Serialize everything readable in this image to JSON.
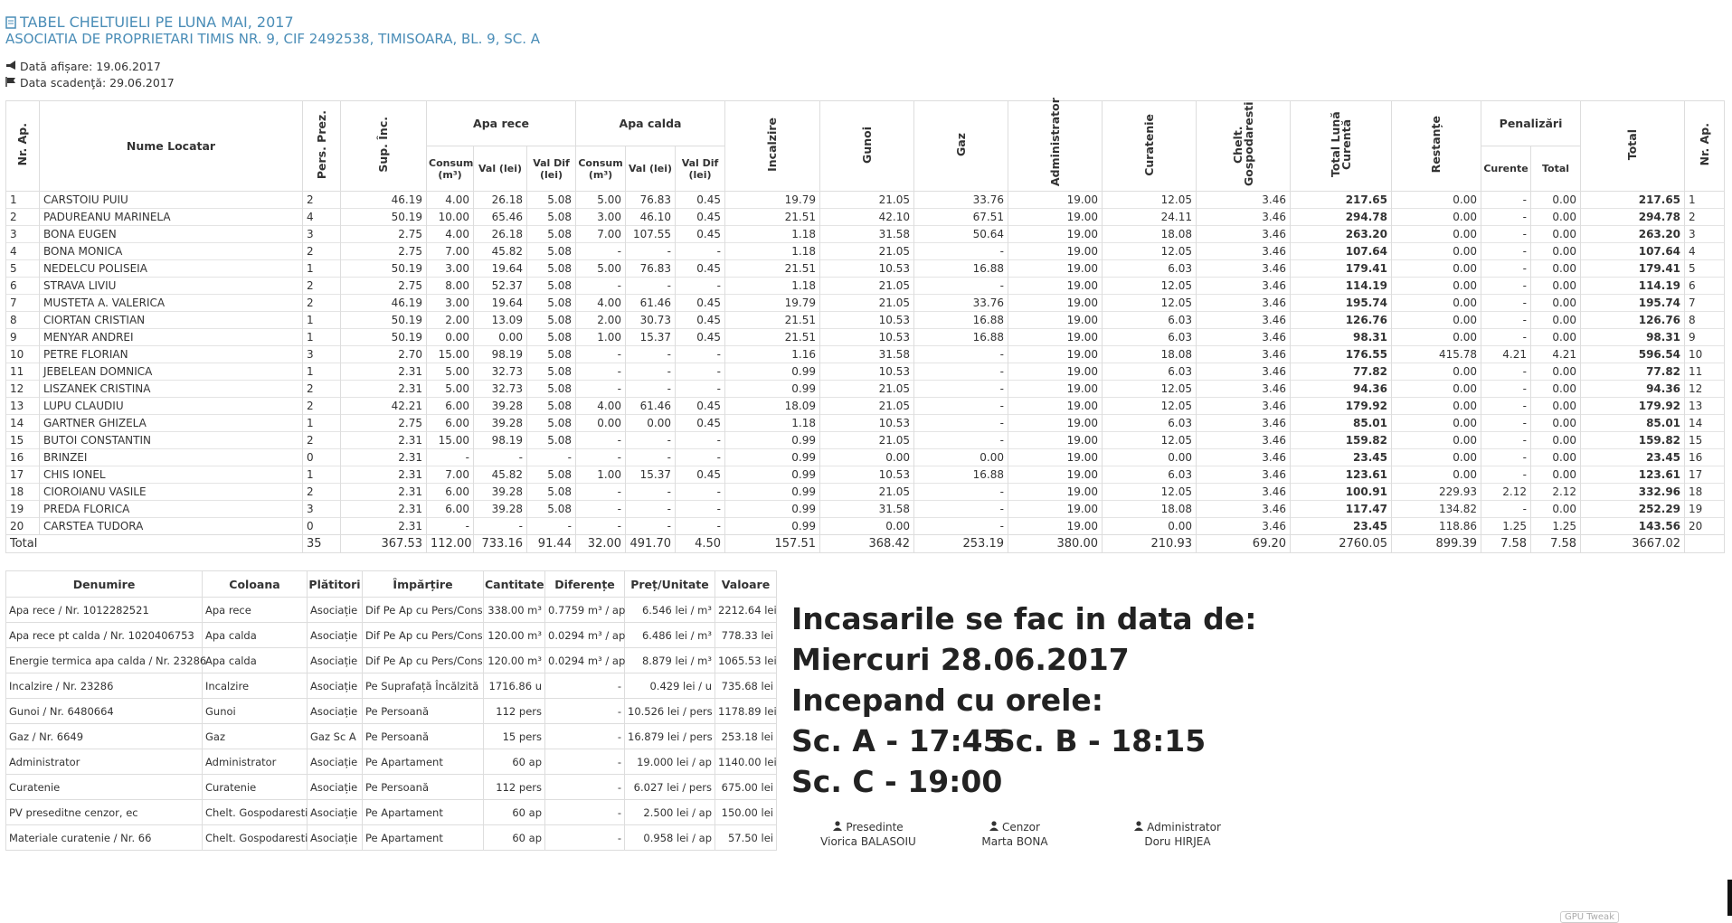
{
  "header": {
    "title": "TABEL CHELTUIELI PE LUNA MAI, 2017",
    "subtitle": "ASOCIATIA DE PROPRIETARI TIMIS NR. 9, CIF 2492538, TIMISOARA, BL. 9, SC. A",
    "display_date": "Dată afișare: 19.06.2017",
    "due_date": "Data scadenţă: 29.06.2017"
  },
  "main_table": {
    "headers": {
      "nr_ap": "Nr. Ap.",
      "name": "Nume Locatar",
      "persons": "Pers. Prez.",
      "surface": "Sup. Înc.",
      "cold_water": {
        "label": "Apa rece",
        "sub": [
          "Consum (m³)",
          "Val (lei)",
          "Val Dif (lei)"
        ]
      },
      "hot_water": {
        "label": "Apa calda",
        "sub": [
          "Consum (m³)",
          "Val (lei)",
          "Val Dif (lei)"
        ]
      },
      "heating": "Incalzire",
      "garbage": "Gunoi",
      "gas": "Gaz",
      "administrator": "Administrator",
      "cleaning": "Curatenie",
      "household": "Chelt. Gospodaresti",
      "month_total": "Total Lună Curentă",
      "arrears": "Restanțe",
      "penalties": {
        "label": "Penalizări",
        "sub": [
          "Curente",
          "Total"
        ]
      },
      "total": "Total",
      "nr_ap_end": "Nr. Ap."
    },
    "rows": [
      [
        "1",
        "CARSTOIU PUIU",
        "2",
        "46.19",
        "4.00",
        "26.18",
        "5.08",
        "5.00",
        "76.83",
        "0.45",
        "19.79",
        "21.05",
        "33.76",
        "19.00",
        "12.05",
        "3.46",
        "217.65",
        "0.00",
        "-",
        "0.00",
        "217.65",
        "1"
      ],
      [
        "2",
        "PADUREANU MARINELA",
        "4",
        "50.19",
        "10.00",
        "65.46",
        "5.08",
        "3.00",
        "46.10",
        "0.45",
        "21.51",
        "42.10",
        "67.51",
        "19.00",
        "24.11",
        "3.46",
        "294.78",
        "0.00",
        "-",
        "0.00",
        "294.78",
        "2"
      ],
      [
        "3",
        "BONA EUGEN",
        "3",
        "2.75",
        "4.00",
        "26.18",
        "5.08",
        "7.00",
        "107.55",
        "0.45",
        "1.18",
        "31.58",
        "50.64",
        "19.00",
        "18.08",
        "3.46",
        "263.20",
        "0.00",
        "-",
        "0.00",
        "263.20",
        "3"
      ],
      [
        "4",
        "BONA MONICA",
        "2",
        "2.75",
        "7.00",
        "45.82",
        "5.08",
        "-",
        "-",
        "-",
        "1.18",
        "21.05",
        "-",
        "19.00",
        "12.05",
        "3.46",
        "107.64",
        "0.00",
        "-",
        "0.00",
        "107.64",
        "4"
      ],
      [
        "5",
        "NEDELCU POLISEIA",
        "1",
        "50.19",
        "3.00",
        "19.64",
        "5.08",
        "5.00",
        "76.83",
        "0.45",
        "21.51",
        "10.53",
        "16.88",
        "19.00",
        "6.03",
        "3.46",
        "179.41",
        "0.00",
        "-",
        "0.00",
        "179.41",
        "5"
      ],
      [
        "6",
        "STRAVA LIVIU",
        "2",
        "2.75",
        "8.00",
        "52.37",
        "5.08",
        "-",
        "-",
        "-",
        "1.18",
        "21.05",
        "-",
        "19.00",
        "12.05",
        "3.46",
        "114.19",
        "0.00",
        "-",
        "0.00",
        "114.19",
        "6"
      ],
      [
        "7",
        "MUSTETA A. VALERICA",
        "2",
        "46.19",
        "3.00",
        "19.64",
        "5.08",
        "4.00",
        "61.46",
        "0.45",
        "19.79",
        "21.05",
        "33.76",
        "19.00",
        "12.05",
        "3.46",
        "195.74",
        "0.00",
        "-",
        "0.00",
        "195.74",
        "7"
      ],
      [
        "8",
        "CIORTAN CRISTIAN",
        "1",
        "50.19",
        "2.00",
        "13.09",
        "5.08",
        "2.00",
        "30.73",
        "0.45",
        "21.51",
        "10.53",
        "16.88",
        "19.00",
        "6.03",
        "3.46",
        "126.76",
        "0.00",
        "-",
        "0.00",
        "126.76",
        "8"
      ],
      [
        "9",
        "MENYAR ANDREI",
        "1",
        "50.19",
        "0.00",
        "0.00",
        "5.08",
        "1.00",
        "15.37",
        "0.45",
        "21.51",
        "10.53",
        "16.88",
        "19.00",
        "6.03",
        "3.46",
        "98.31",
        "0.00",
        "-",
        "0.00",
        "98.31",
        "9"
      ],
      [
        "10",
        "PETRE FLORIAN",
        "3",
        "2.70",
        "15.00",
        "98.19",
        "5.08",
        "-",
        "-",
        "-",
        "1.16",
        "31.58",
        "-",
        "19.00",
        "18.08",
        "3.46",
        "176.55",
        "415.78",
        "4.21",
        "4.21",
        "596.54",
        "10"
      ],
      [
        "11",
        "JEBELEAN DOMNICA",
        "1",
        "2.31",
        "5.00",
        "32.73",
        "5.08",
        "-",
        "-",
        "-",
        "0.99",
        "10.53",
        "-",
        "19.00",
        "6.03",
        "3.46",
        "77.82",
        "0.00",
        "-",
        "0.00",
        "77.82",
        "11"
      ],
      [
        "12",
        "LISZANEK CRISTINA",
        "2",
        "2.31",
        "5.00",
        "32.73",
        "5.08",
        "-",
        "-",
        "-",
        "0.99",
        "21.05",
        "-",
        "19.00",
        "12.05",
        "3.46",
        "94.36",
        "0.00",
        "-",
        "0.00",
        "94.36",
        "12"
      ],
      [
        "13",
        "LUPU CLAUDIU",
        "2",
        "42.21",
        "6.00",
        "39.28",
        "5.08",
        "4.00",
        "61.46",
        "0.45",
        "18.09",
        "21.05",
        "-",
        "19.00",
        "12.05",
        "3.46",
        "179.92",
        "0.00",
        "-",
        "0.00",
        "179.92",
        "13"
      ],
      [
        "14",
        "GARTNER GHIZELA",
        "1",
        "2.75",
        "6.00",
        "39.28",
        "5.08",
        "0.00",
        "0.00",
        "0.45",
        "1.18",
        "10.53",
        "-",
        "19.00",
        "6.03",
        "3.46",
        "85.01",
        "0.00",
        "-",
        "0.00",
        "85.01",
        "14"
      ],
      [
        "15",
        "BUTOI CONSTANTIN",
        "2",
        "2.31",
        "15.00",
        "98.19",
        "5.08",
        "-",
        "-",
        "-",
        "0.99",
        "21.05",
        "-",
        "19.00",
        "12.05",
        "3.46",
        "159.82",
        "0.00",
        "-",
        "0.00",
        "159.82",
        "15"
      ],
      [
        "16",
        "BRINZEI",
        "0",
        "2.31",
        "-",
        "-",
        "-",
        "-",
        "-",
        "-",
        "0.99",
        "0.00",
        "0.00",
        "19.00",
        "0.00",
        "3.46",
        "23.45",
        "0.00",
        "-",
        "0.00",
        "23.45",
        "16"
      ],
      [
        "17",
        "CHIS IONEL",
        "1",
        "2.31",
        "7.00",
        "45.82",
        "5.08",
        "1.00",
        "15.37",
        "0.45",
        "0.99",
        "10.53",
        "16.88",
        "19.00",
        "6.03",
        "3.46",
        "123.61",
        "0.00",
        "-",
        "0.00",
        "123.61",
        "17"
      ],
      [
        "18",
        "CIOROIANU VASILE",
        "2",
        "2.31",
        "6.00",
        "39.28",
        "5.08",
        "-",
        "-",
        "-",
        "0.99",
        "21.05",
        "-",
        "19.00",
        "12.05",
        "3.46",
        "100.91",
        "229.93",
        "2.12",
        "2.12",
        "332.96",
        "18"
      ],
      [
        "19",
        "PREDA FLORICA",
        "3",
        "2.31",
        "6.00",
        "39.28",
        "5.08",
        "-",
        "-",
        "-",
        "0.99",
        "31.58",
        "-",
        "19.00",
        "18.08",
        "3.46",
        "117.47",
        "134.82",
        "-",
        "0.00",
        "252.29",
        "19"
      ],
      [
        "20",
        "CARSTEA TUDORA",
        "0",
        "2.31",
        "-",
        "-",
        "-",
        "-",
        "-",
        "-",
        "0.99",
        "0.00",
        "-",
        "19.00",
        "0.00",
        "3.46",
        "23.45",
        "118.86",
        "1.25",
        "1.25",
        "143.56",
        "20"
      ]
    ],
    "total_row": {
      "label": "Total",
      "values": [
        "35",
        "367.53",
        "112.00",
        "733.16",
        "91.44",
        "32.00",
        "491.70",
        "4.50",
        "157.51",
        "368.42",
        "253.19",
        "380.00",
        "210.93",
        "69.20",
        "2760.05",
        "899.39",
        "7.58",
        "7.58",
        "3667.02"
      ]
    }
  },
  "summary_table": {
    "headers": [
      "Denumire",
      "Coloana",
      "Plătitori",
      "Împărțire",
      "Cantitate",
      "Diferențe",
      "Preț/Unitate",
      "Valoare"
    ],
    "rows": [
      [
        "Apa rece / Nr. 1012282521",
        "Apa rece",
        "Asociație",
        "Dif Pe Ap cu Pers/Cons",
        "338.00 m³",
        "0.7759 m³ / ap",
        "6.546 lei / m³",
        "2212.64 lei"
      ],
      [
        "Apa rece pt calda / Nr. 1020406753",
        "Apa calda",
        "Asociație",
        "Dif Pe Ap cu Pers/Cons",
        "120.00 m³",
        "0.0294 m³ / ap",
        "6.486 lei / m³",
        "778.33 lei"
      ],
      [
        "Energie termica apa calda / Nr. 23286",
        "Apa calda",
        "Asociație",
        "Dif Pe Ap cu Pers/Cons",
        "120.00 m³",
        "0.0294 m³ / ap",
        "8.879 lei / m³",
        "1065.53 lei"
      ],
      [
        "Incalzire / Nr. 23286",
        "Incalzire",
        "Asociație",
        "Pe Suprafață Încălzită",
        "1716.86 u",
        "-",
        "0.429 lei / u",
        "735.68 lei"
      ],
      [
        "Gunoi / Nr. 6480664",
        "Gunoi",
        "Asociație",
        "Pe Persoană",
        "112 pers",
        "-",
        "10.526 lei / pers",
        "1178.89 lei"
      ],
      [
        "Gaz / Nr. 6649",
        "Gaz",
        "Gaz Sc A",
        "Pe Persoană",
        "15 pers",
        "-",
        "16.879 lei / pers",
        "253.18 lei"
      ],
      [
        "Administrator",
        "Administrator",
        "Asociație",
        "Pe Apartament",
        "60 ap",
        "-",
        "19.000 lei / ap",
        "1140.00 lei"
      ],
      [
        "Curatenie",
        "Curatenie",
        "Asociație",
        "Pe Persoană",
        "112 pers",
        "-",
        "6.027 lei / pers",
        "675.00 lei"
      ],
      [
        "PV preseditne cenzor, ec",
        "Chelt. Gospodaresti",
        "Asociație",
        "Pe Apartament",
        "60 ap",
        "-",
        "2.500 lei / ap",
        "150.00 lei"
      ],
      [
        "Materiale curatenie / Nr. 66",
        "Chelt. Gospodaresti",
        "Asociație",
        "Pe Apartament",
        "60 ap",
        "-",
        "0.958 lei / ap",
        "57.50 lei"
      ]
    ]
  },
  "notice": {
    "line1": "Incasarile se fac in data de:",
    "line2": "Miercuri 28.06.2017",
    "line3": "Incepand cu orele:",
    "sc_a": "Sc. A - 17:45",
    "sc_b": "Sc. B - 18:15",
    "sc_c": "Sc. C - 19:00"
  },
  "signatures": [
    {
      "role": "Presedinte",
      "name": "Viorica BALASOIU"
    },
    {
      "role": "Cenzor",
      "name": "Marta BONA"
    },
    {
      "role": "Administrator",
      "name": "Doru HIRJEA"
    }
  ],
  "overlay": "GPU Tweak"
}
